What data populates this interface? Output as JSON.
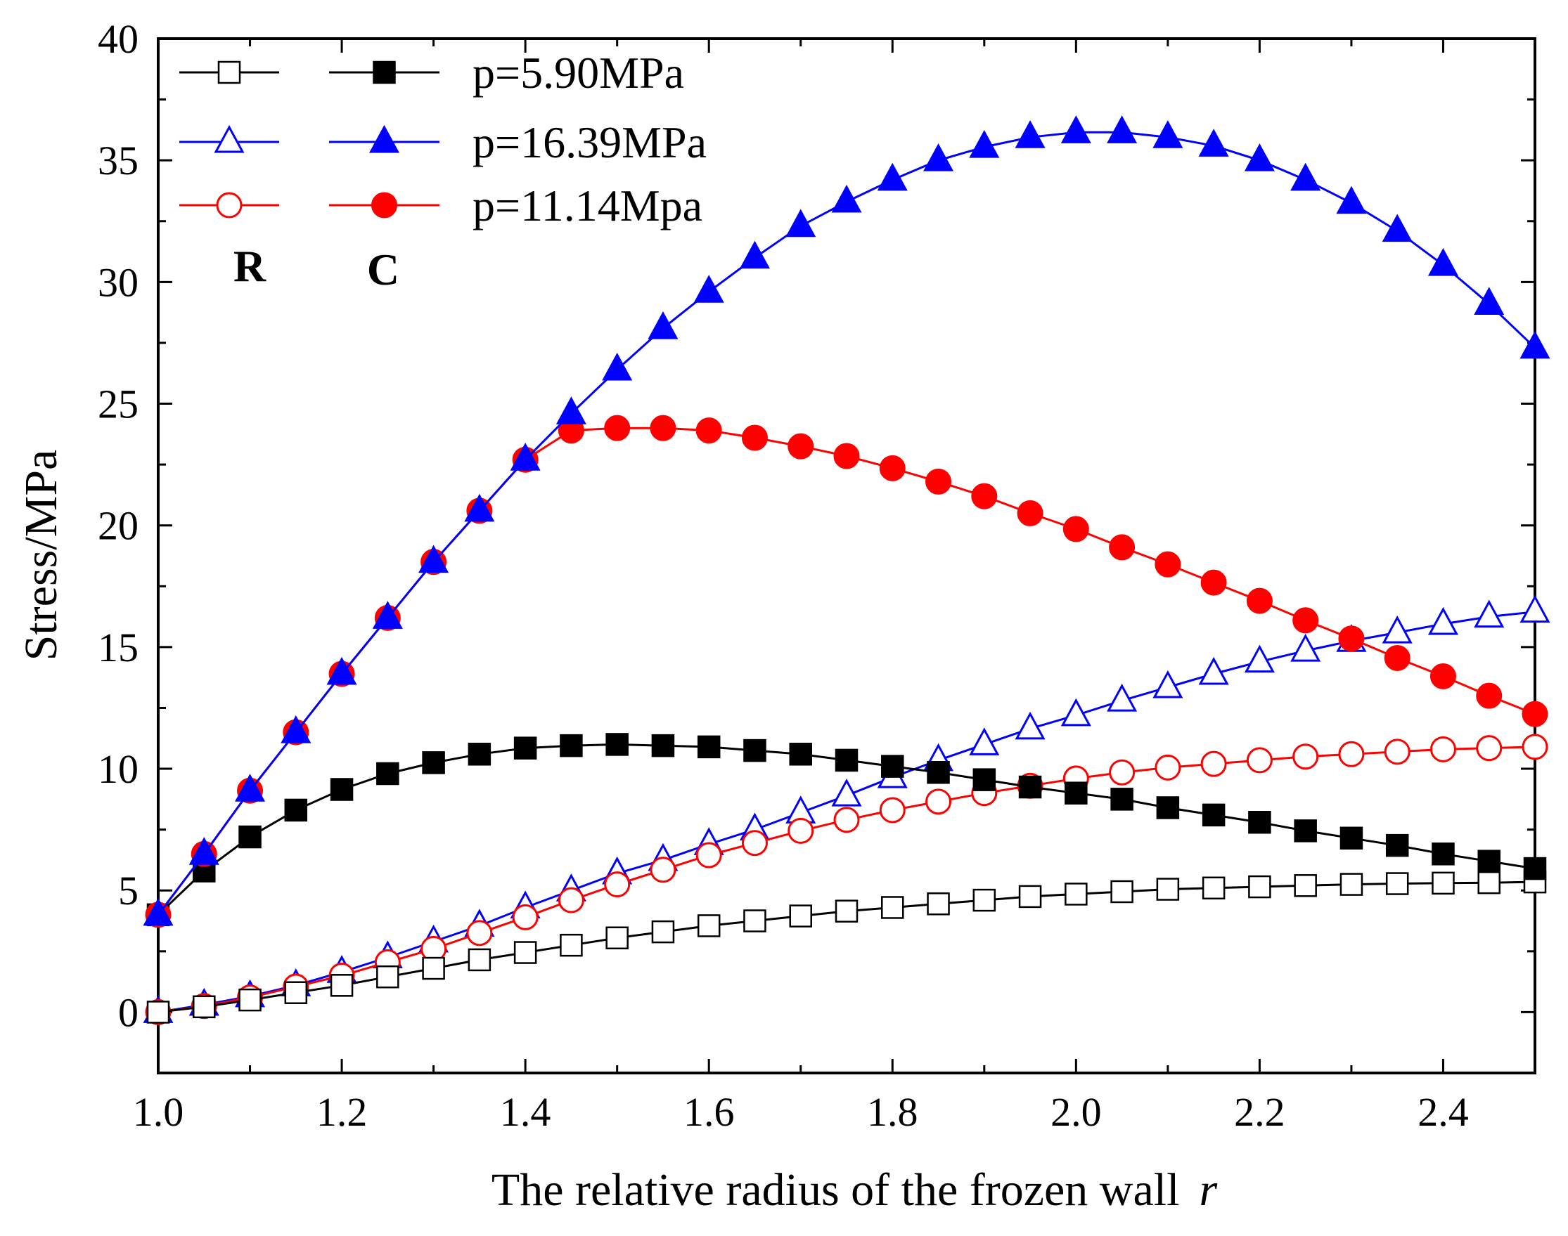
{
  "chart_data": {
    "type": "line",
    "title": "",
    "xlabel": "The relative radius of the frozen wall",
    "xlabel_var": "r",
    "ylabel": "Stress/MPa",
    "xlim": [
      1.0,
      2.5
    ],
    "ylim": [
      -2.5,
      40
    ],
    "xticks": [
      1.0,
      1.2,
      1.4,
      1.6,
      1.8,
      2.0,
      2.2,
      2.4
    ],
    "xtick_labels": [
      "1.0",
      "1.2",
      "1.4",
      "1.6",
      "1.8",
      "2.0",
      "2.2",
      "2.4"
    ],
    "yticks": [
      0,
      5,
      10,
      15,
      20,
      25,
      30,
      35,
      40
    ],
    "ytick_labels": [
      "0",
      "5",
      "10",
      "15",
      "20",
      "25",
      "30",
      "35",
      "40"
    ],
    "legend": {
      "position": "top-left",
      "column_headers": [
        "R",
        "C"
      ],
      "rows": [
        {
          "label": "p=5.90MPa",
          "color": "#000000",
          "marker": "square"
        },
        {
          "label": "p=16.39MPa",
          "color": "#0000ff",
          "marker": "triangle"
        },
        {
          "label": "p=11.14Mpa",
          "color": "#ff0000",
          "marker": "circle"
        }
      ]
    },
    "x": [
      1.0,
      1.05,
      1.1,
      1.15,
      1.2,
      1.25,
      1.3,
      1.35,
      1.4,
      1.45,
      1.5,
      1.55,
      1.6,
      1.65,
      1.7,
      1.75,
      1.8,
      1.85,
      1.9,
      1.95,
      2.0,
      2.05,
      2.1,
      2.15,
      2.2,
      2.25,
      2.3,
      2.35,
      2.4,
      2.45,
      2.5
    ],
    "series": [
      {
        "name": "p=16.39MPa R",
        "color": "#0000ff",
        "marker": "triangle",
        "filled": false,
        "values": [
          0,
          0.3,
          0.65,
          1.1,
          1.65,
          2.25,
          2.9,
          3.55,
          4.3,
          5.0,
          5.7,
          6.25,
          6.9,
          7.5,
          8.2,
          8.9,
          9.65,
          10.35,
          11.0,
          11.65,
          12.2,
          12.8,
          13.35,
          13.9,
          14.4,
          14.85,
          15.25,
          15.6,
          15.95,
          16.25,
          16.45
        ]
      },
      {
        "name": "p=11.14Mpa R",
        "color": "#ff0000",
        "marker": "circle",
        "filled": false,
        "values": [
          0,
          0.25,
          0.6,
          1.05,
          1.5,
          2.05,
          2.6,
          3.25,
          3.9,
          4.6,
          5.25,
          5.85,
          6.45,
          6.95,
          7.45,
          7.9,
          8.3,
          8.65,
          9.0,
          9.3,
          9.6,
          9.85,
          10.05,
          10.2,
          10.35,
          10.5,
          10.6,
          10.7,
          10.8,
          10.85,
          10.9
        ]
      },
      {
        "name": "p=5.90MPa R",
        "color": "#000000",
        "marker": "square",
        "filled": false,
        "values": [
          0,
          0.22,
          0.5,
          0.8,
          1.1,
          1.45,
          1.8,
          2.15,
          2.45,
          2.75,
          3.05,
          3.3,
          3.55,
          3.75,
          3.95,
          4.15,
          4.3,
          4.45,
          4.6,
          4.75,
          4.85,
          4.95,
          5.05,
          5.1,
          5.15,
          5.2,
          5.25,
          5.28,
          5.3,
          5.32,
          5.35
        ]
      },
      {
        "name": "p=5.90MPa C",
        "color": "#000000",
        "marker": "square",
        "filled": true,
        "values": [
          4.0,
          5.8,
          7.2,
          8.3,
          9.15,
          9.8,
          10.25,
          10.6,
          10.85,
          10.95,
          11.0,
          10.95,
          10.9,
          10.75,
          10.6,
          10.35,
          10.1,
          9.85,
          9.55,
          9.25,
          9.0,
          8.75,
          8.4,
          8.1,
          7.8,
          7.45,
          7.15,
          6.85,
          6.5,
          6.2,
          5.9
        ]
      },
      {
        "name": "p=11.14Mpa C",
        "color": "#ff0000",
        "marker": "circle",
        "filled": true,
        "values": [
          4.0,
          6.5,
          9.1,
          11.5,
          13.9,
          16.2,
          18.5,
          20.6,
          22.7,
          23.9,
          24.0,
          24.0,
          23.9,
          23.6,
          23.25,
          22.85,
          22.35,
          21.8,
          21.2,
          20.5,
          19.85,
          19.1,
          18.4,
          17.65,
          16.9,
          16.1,
          15.35,
          14.55,
          13.8,
          13.0,
          12.25
        ]
      },
      {
        "name": "p=16.39MPa C",
        "color": "#0000ff",
        "marker": "triangle",
        "filled": true,
        "values": [
          4.0,
          6.5,
          9.1,
          11.5,
          13.9,
          16.2,
          18.5,
          20.6,
          22.7,
          24.6,
          26.4,
          28.1,
          29.6,
          31.0,
          32.3,
          33.3,
          34.2,
          35.0,
          35.55,
          35.95,
          36.15,
          36.15,
          35.95,
          35.6,
          35.0,
          34.2,
          33.25,
          32.1,
          30.7,
          29.1,
          27.3
        ]
      }
    ]
  }
}
